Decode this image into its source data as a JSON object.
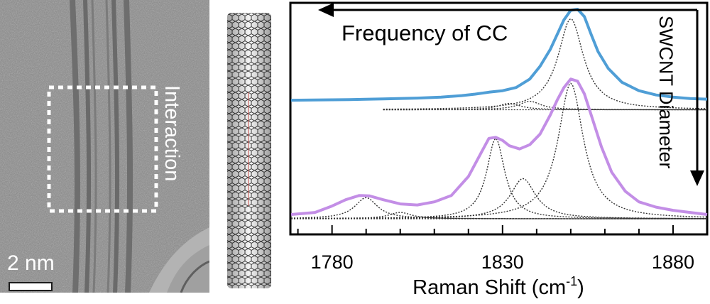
{
  "tem": {
    "interaction_label": "Interaction",
    "scale_label": "2 nm"
  },
  "annotations": {
    "top_arrow_label": "Frequency of CC",
    "right_arrow_label": "SWCNT Diameter"
  },
  "colors": {
    "top_spectrum": "#4f9ed6",
    "bottom_spectrum": "#c38ee6",
    "fit_lines": "#333333"
  },
  "chart_data": {
    "type": "line",
    "xlabel": "Raman Shift (cm-1)",
    "xlabel_main": "Raman Shift (cm",
    "xlabel_sup": "-1",
    "xlabel_end": ")",
    "xlim": [
      1768,
      1890
    ],
    "xticks": [
      1780,
      1830,
      1880
    ],
    "xtick_labels": [
      "1780",
      "1830",
      "1880"
    ],
    "series": [
      {
        "x": [
          1768,
          1775,
          1785,
          1795,
          1805,
          1812,
          1818,
          1822,
          1826,
          1830,
          1834,
          1838,
          1841,
          1844,
          1846,
          1848,
          1850,
          1852,
          1854,
          1856,
          1858,
          1861,
          1865,
          1870,
          1875,
          1880,
          1885,
          1890
        ],
        "y": [
          0.56,
          0.561,
          0.563,
          0.566,
          0.57,
          0.575,
          0.582,
          0.589,
          0.598,
          0.605,
          0.62,
          0.66,
          0.72,
          0.8,
          0.87,
          0.94,
          0.985,
          0.99,
          0.955,
          0.87,
          0.79,
          0.71,
          0.645,
          0.605,
          0.585,
          0.575,
          0.568,
          0.565
        ]
      },
      {
        "x": [
          1768,
          1775,
          1780,
          1784,
          1788,
          1791,
          1795,
          1800,
          1805,
          1810,
          1815,
          1820,
          1824,
          1826,
          1828,
          1830,
          1832,
          1835,
          1838,
          1841,
          1844,
          1846,
          1848,
          1850,
          1852,
          1854,
          1856,
          1859,
          1862,
          1866,
          1870,
          1875,
          1880,
          1885,
          1890
        ],
        "y": [
          0.02,
          0.03,
          0.06,
          0.09,
          0.11,
          0.108,
          0.09,
          0.07,
          0.065,
          0.08,
          0.11,
          0.2,
          0.32,
          0.38,
          0.385,
          0.37,
          0.345,
          0.33,
          0.35,
          0.4,
          0.49,
          0.56,
          0.62,
          0.66,
          0.65,
          0.59,
          0.49,
          0.34,
          0.22,
          0.13,
          0.08,
          0.055,
          0.04,
          0.03,
          0.02
        ]
      }
    ],
    "fits": [
      {
        "baseline": 0.515,
        "x_start": 1795,
        "peaks": [
          {
            "center": 1850,
            "height": 0.43,
            "width": 4.5
          },
          {
            "center": 1838,
            "height": 0.04,
            "width": 4
          },
          {
            "center": 1832,
            "height": 0.03,
            "width": 4
          }
        ]
      },
      {
        "baseline": 0.0,
        "x_start": 1768,
        "peaks": [
          {
            "center": 1850,
            "height": 0.64,
            "width": 4.5
          },
          {
            "center": 1828,
            "height": 0.38,
            "width": 3.2
          },
          {
            "center": 1836,
            "height": 0.19,
            "width": 4.5
          },
          {
            "center": 1790,
            "height": 0.1,
            "width": 4
          },
          {
            "center": 1800,
            "height": 0.03,
            "width": 4
          }
        ]
      }
    ],
    "grid": false,
    "legend": "none"
  }
}
